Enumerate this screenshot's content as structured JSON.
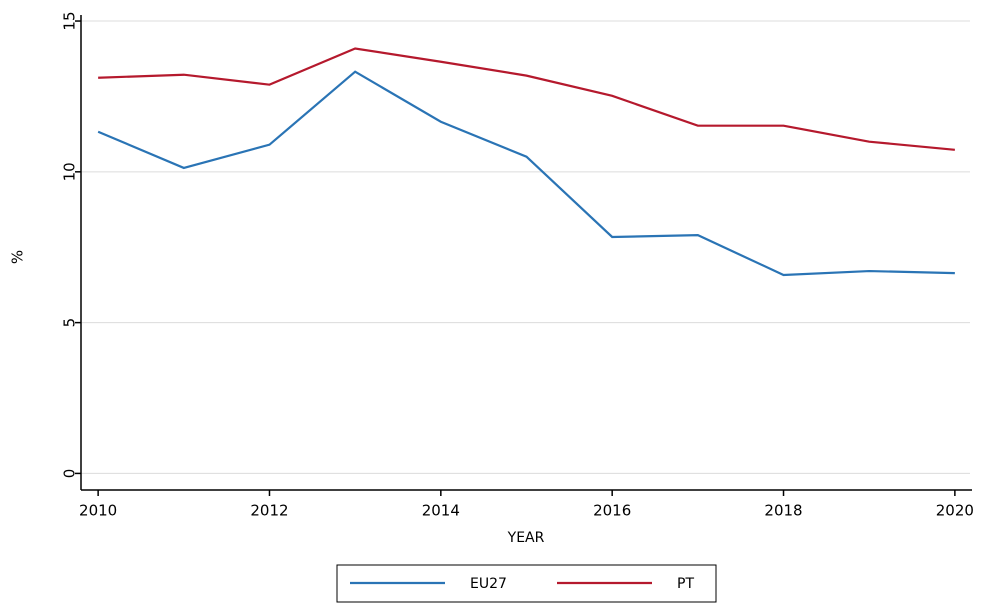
{
  "chart_data": {
    "type": "line",
    "x": [
      2010,
      2011,
      2012,
      2013,
      2014,
      2015,
      2016,
      2017,
      2018,
      2019,
      2020
    ],
    "series": [
      {
        "name": "EU27",
        "color": "#2a74b5",
        "values": [
          11.33,
          10.13,
          10.9,
          13.32,
          11.66,
          10.5,
          7.84,
          7.9,
          6.58,
          6.71,
          6.64
        ]
      },
      {
        "name": "PT",
        "color": "#b5192d",
        "values": [
          13.12,
          13.22,
          12.89,
          14.09,
          13.65,
          13.19,
          12.52,
          11.53,
          11.53,
          11.0,
          10.73
        ]
      }
    ],
    "xlabel": "YEAR",
    "ylabel": "%",
    "xlim": [
      2009.8,
      2020.2
    ],
    "xticks": [
      2010,
      2012,
      2014,
      2016,
      2018,
      2020
    ],
    "ylim": [
      -0.55,
      15.2
    ],
    "yticks": [
      0,
      5,
      10,
      15
    ],
    "grid": true,
    "legend": "bottom"
  }
}
